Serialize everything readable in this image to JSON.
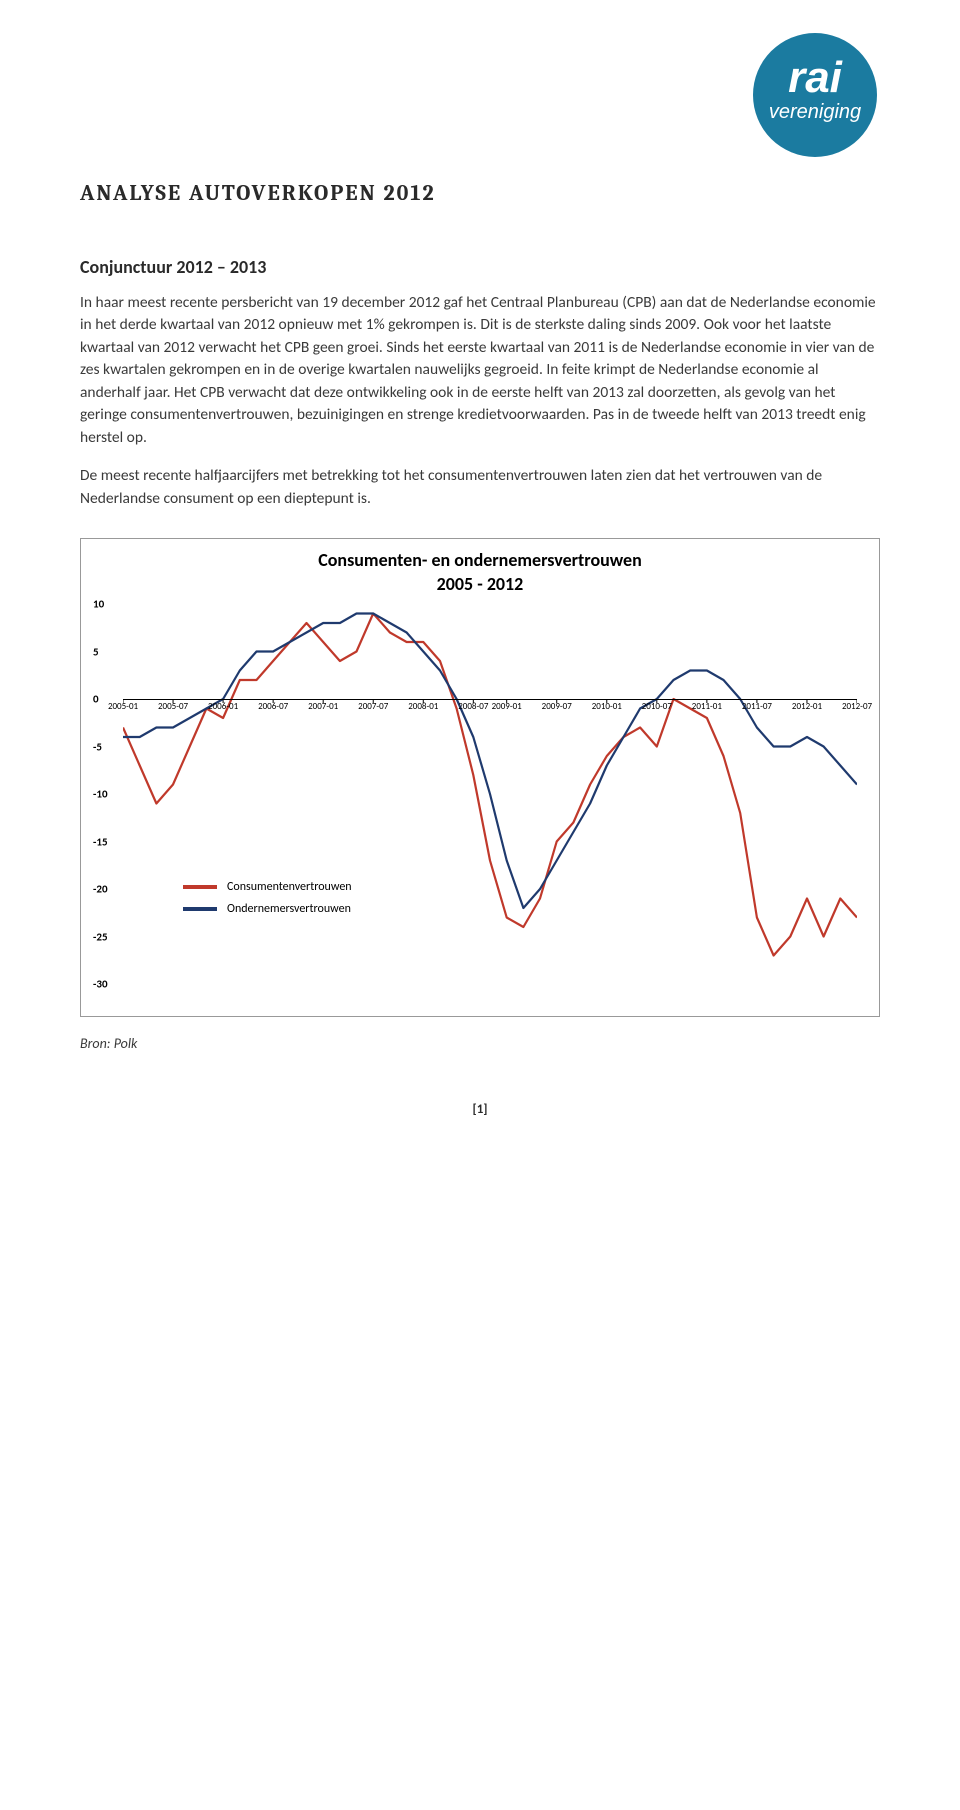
{
  "logo": {
    "top_text": "rai",
    "bottom_text": "vereniging",
    "bg_color": "#1b7ba0",
    "text_color": "#ffffff"
  },
  "title": "ANALYSE AUTOVERKOPEN 2012",
  "section_heading": "Conjunctuur 2012 – 2013",
  "paragraphs": [
    "In haar meest recente persbericht van 19 december 2012 gaf het Centraal Planbureau (CPB) aan dat de Nederlandse economie in het derde kwartaal van 2012 opnieuw met 1% gekrompen is. Dit is de sterkste daling sinds 2009. Ook voor het laatste kwartaal van 2012 verwacht het CPB geen groei. Sinds het eerste kwartaal van 2011 is de Nederlandse economie in vier van de zes kwartalen gekrompen en in de overige kwartalen nauwelijks gegroeid. In feite krimpt de Nederlandse economie al anderhalf jaar. Het CPB verwacht dat deze ontwikkeling ook in de eerste helft van 2013 zal doorzetten, als gevolg van het geringe consumentenvertrouwen, bezuinigingen en strenge kredietvoorwaarden. Pas in de tweede helft van 2013 treedt enig herstel op.",
    "De meest recente halfjaarcijfers met betrekking tot het consumentenvertrouwen laten zien dat het vertrouwen van de Nederlandse consument op een dieptepunt is."
  ],
  "chart": {
    "type": "line",
    "title_line1": "Consumenten- en ondernemersvertrouwen",
    "title_line2": "2005 - 2012",
    "background_color": "#ffffff",
    "title_fontsize": 18,
    "xlabels": [
      "2005-01",
      "2005-07",
      "2006-01",
      "2006-07",
      "2007-01",
      "2007-07",
      "2008-01",
      "2008-07",
      "2009-01",
      "2009-07",
      "2010-01",
      "2010-07",
      "2011-01",
      "2011-07",
      "2012-01",
      "2012-07"
    ],
    "ylim": [
      -30,
      10
    ],
    "ytick_step": 5,
    "axis_color": "#000000",
    "label_fontsize": 10,
    "line_width": 2.2,
    "series": [
      {
        "name": "Consumentenvertrouwen",
        "color": "#c0392b",
        "values": [
          -3,
          -7,
          -11,
          -9,
          -5,
          -1,
          -2,
          2,
          2,
          4,
          6,
          8,
          6,
          4,
          5,
          9,
          7,
          6,
          6,
          4,
          -1,
          -8,
          -17,
          -23,
          -24,
          -21,
          -15,
          -13,
          -9,
          -6,
          -4,
          -3,
          -5,
          0,
          -1,
          -2,
          -6,
          -12,
          -23,
          -27,
          -25,
          -21,
          -25,
          -21,
          -23
        ]
      },
      {
        "name": "Ondernemersvertrouwen",
        "color": "#1f3a6e",
        "values": [
          -4,
          -4,
          -3,
          -3,
          -2,
          -1,
          0,
          3,
          5,
          5,
          6,
          7,
          8,
          8,
          9,
          9,
          8,
          7,
          5,
          3,
          0,
          -4,
          -10,
          -17,
          -22,
          -20,
          -17,
          -14,
          -11,
          -7,
          -4,
          -1,
          0,
          2,
          3,
          3,
          2,
          0,
          -3,
          -5,
          -5,
          -4,
          -5,
          -7,
          -9
        ]
      }
    ],
    "legend_position": "bottom-left",
    "source_label": "Bron: Polk"
  },
  "page_number": "[1]"
}
